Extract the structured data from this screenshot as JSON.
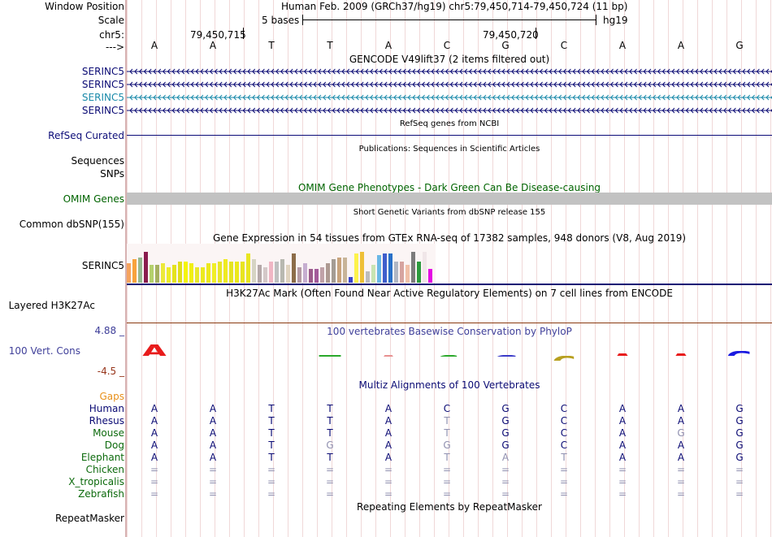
{
  "labels": {
    "window_position": "Window Position",
    "scale": "Scale",
    "chr": "chr5:",
    "arrow": "--->",
    "serinc5_rows": [
      "SERINC5",
      "SERINC5",
      "SERINC5",
      "SERINC5"
    ],
    "refseq": "RefSeq Curated",
    "sequences": "Sequences",
    "snps": "SNPs",
    "omim": "OMIM Genes",
    "common_dbsnp": "Common dbSNP(155)",
    "gtex_gene": "SERINC5",
    "h3k27ac": "Layered H3K27Ac",
    "cons_top": "4.88 _",
    "cons": "100 Vert. Cons",
    "cons_bottom": "-4.5 _",
    "gaps": "Gaps",
    "repeatmasker": "RepeatMasker"
  },
  "header": {
    "assembly": "Human Feb. 2009 (GRCh37/hg19)   chr5:79,450,714-79,450,724 (11 bp)",
    "scale_text": "5 bases",
    "scale_db": "hg19",
    "coord1": "79,450,715",
    "coord2": "79,450,720"
  },
  "bases": [
    "A",
    "A",
    "T",
    "T",
    "A",
    "C",
    "G",
    "C",
    "A",
    "A",
    "G"
  ],
  "tracks": {
    "gencode": "GENCODE V49lift37 (2 items filtered out)",
    "refseq": "RefSeq genes from NCBI",
    "publications": "Publications: Sequences in Scientific Articles",
    "omim": "OMIM Gene Phenotypes - Dark Green Can Be Disease-causing",
    "dbsnp": "Short Genetic Variants from dbSNP release 155",
    "gtex": "Gene Expression in 54 tissues from GTEx RNA-seq of 17382 samples, 948 donors (V8, Aug 2019)",
    "h3k27ac": "H3K27Ac Mark (Often Found Near Active Regulatory Elements) on 7 cell lines from ENCODE",
    "phylop": "100 vertebrates Basewise Conservation by PhyloP",
    "multiz": "Multiz Alignments of 100 Vertebrates",
    "repeatmasker": "Repeating Elements by RepeatMasker"
  },
  "gtex": {
    "values": [
      0.5,
      0.6,
      0.65,
      0.8,
      0.45,
      0.45,
      0.5,
      0.4,
      0.45,
      0.55,
      0.55,
      0.5,
      0.4,
      0.4,
      0.5,
      0.5,
      0.55,
      0.6,
      0.55,
      0.55,
      0.55,
      0.75,
      0.6,
      0.45,
      0.4,
      0.55,
      0.55,
      0.6,
      0.45,
      0.75,
      0.4,
      0.5,
      0.35,
      0.35,
      0.4,
      0.5,
      0.6,
      0.65,
      0.65,
      0.15,
      0.75,
      0.8,
      0.3,
      0.45,
      0.7,
      0.75,
      0.75,
      0.55,
      0.55,
      0.45,
      0.8,
      0.55,
      0.8,
      0.35
    ],
    "colors": [
      "#f5a35e",
      "#f7a23c",
      "#96b98f",
      "#8a1d4e",
      "#b4d06c",
      "#a5b060",
      "#ece93a",
      "#ecec28",
      "#e4e21e",
      "#e0de1a",
      "#f4f40a",
      "#f0ef14",
      "#e8e82c",
      "#ecea1e",
      "#ece81c",
      "#f0ee28",
      "#e8e62a",
      "#eeea22",
      "#e4e422",
      "#ebe81c",
      "#e8e420",
      "#e9e620",
      "#d6d4c4",
      "#b4a8a8",
      "#d4c8c8",
      "#f0b6c4",
      "#c0c0c0",
      "#b8b8b0",
      "#e0d4c0",
      "#8c6d49",
      "#b49aa4",
      "#c6aed0",
      "#9c5c8c",
      "#a35b9a",
      "#c0a2a8",
      "#ae9a92",
      "#a49c94",
      "#c8a37c",
      "#c8b498",
      "#3a46cc",
      "#fdf24a",
      "#eec038",
      "#bcbcbc",
      "#c9e4b2",
      "#6ab8e6",
      "#3e5ecc",
      "#2870c8",
      "#b1b7c4",
      "#d6a4a0",
      "#f0c0a8",
      "#7c7c7c",
      "#2c9a3e",
      "#f0e6e8",
      "#e40ae4"
    ]
  },
  "alignment": {
    "species": [
      "Human",
      "Rhesus",
      "Mouse",
      "Dog",
      "Elephant",
      "Chicken",
      "X_tropicalis",
      "Zebrafish"
    ],
    "rows": [
      [
        "A",
        "A",
        "T",
        "T",
        "A",
        "C",
        "G",
        "C",
        "A",
        "A",
        "G"
      ],
      [
        "A",
        "A",
        "T",
        "T",
        "A",
        "T",
        "G",
        "C",
        "A",
        "A",
        "G"
      ],
      [
        "A",
        "A",
        "T",
        "T",
        "A",
        "T",
        "G",
        "C",
        "A",
        "G",
        "G"
      ],
      [
        "A",
        "A",
        "T",
        "G",
        "A",
        "G",
        "G",
        "C",
        "A",
        "A",
        "G"
      ],
      [
        "A",
        "A",
        "T",
        "T",
        "A",
        "T",
        "A",
        "T",
        "A",
        "A",
        "G"
      ],
      [
        "=",
        "=",
        "=",
        "=",
        "=",
        "=",
        "=",
        "=",
        "=",
        "=",
        "="
      ],
      [
        "=",
        "=",
        "=",
        "=",
        "=",
        "=",
        "=",
        "=",
        "=",
        "=",
        "="
      ],
      [
        "=",
        "=",
        "=",
        "=",
        "=",
        "=",
        "=",
        "=",
        "=",
        "=",
        "="
      ]
    ]
  },
  "colors": {
    "gene_dark": "#0a0a74",
    "gene_light": "#1a8aaa",
    "refseq": "#0c0c78",
    "omim_label": "#006400",
    "omim_bar": "#c2c2c2",
    "cons_label": "#40409a",
    "cons_bottom": "#96341a",
    "gaps": "#e8901a",
    "species_dark": "#0a0a74",
    "species_green": "#0c6a0c",
    "mismatch": "#9090b0"
  }
}
